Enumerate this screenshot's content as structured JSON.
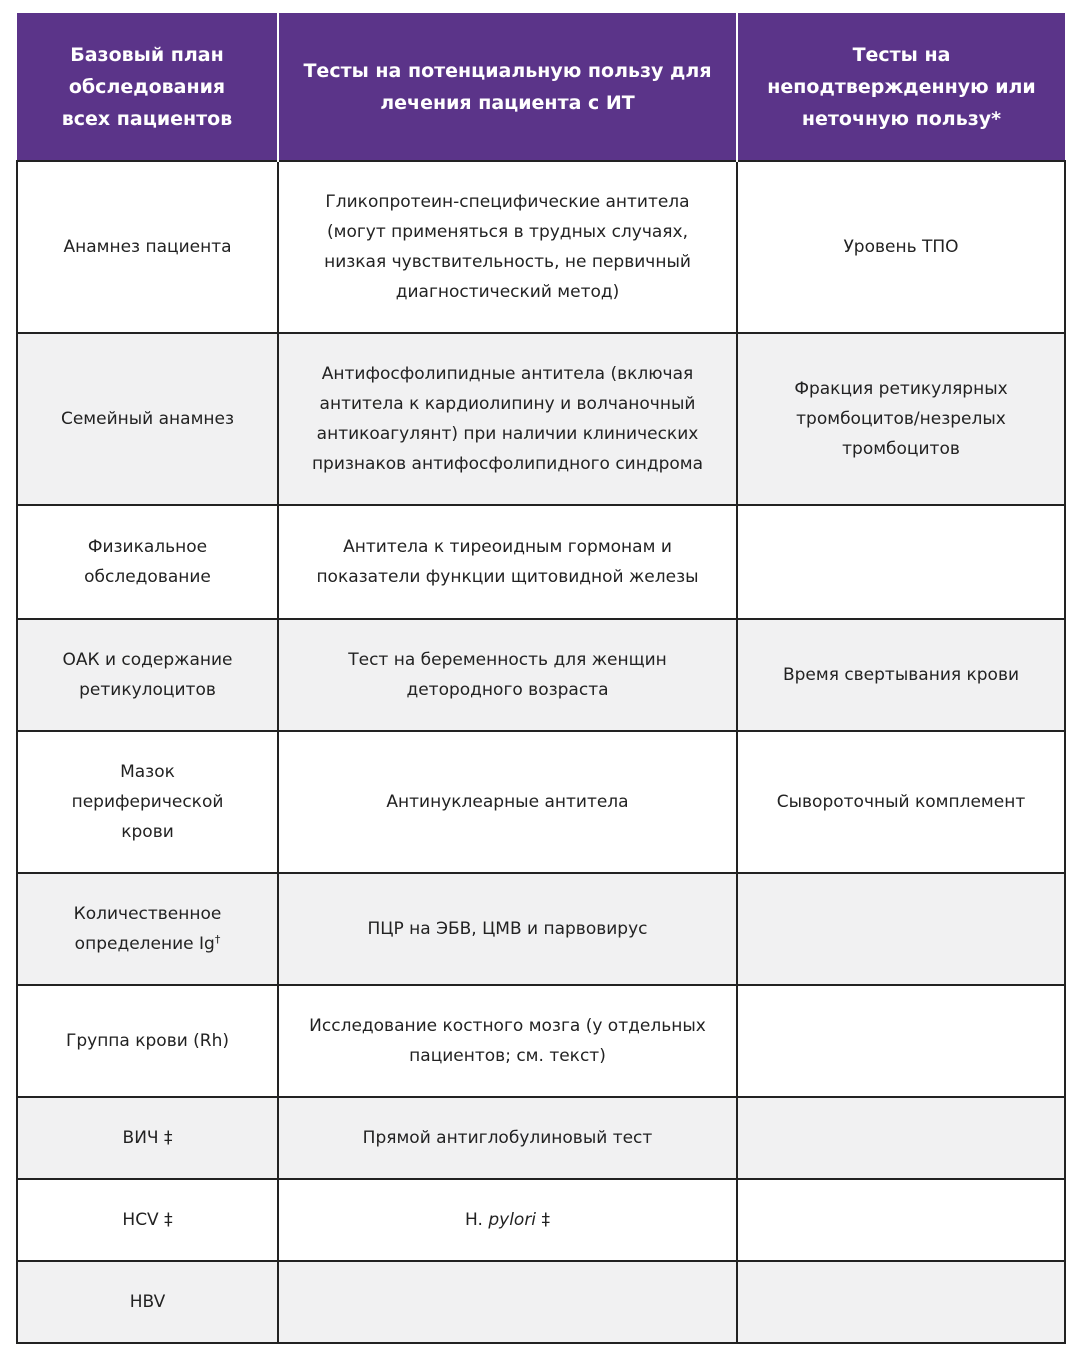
{
  "header_color": "#5b3489",
  "columns": [
    "Базовый план\nобследования\nвсех пациентов",
    "Тесты на потенциальную пользу для\nлечения пациента с ИТ",
    "Тесты на\nнеподтвержденную или\nнеточную пользу*"
  ],
  "rows": [
    {
      "h": 172,
      "cells": [
        "Анамнез пациента",
        "Гликопротеин-специфические антитела\n(могут применяться в трудных случаях,\nнизкая чувствительность, не первичный\nдиагностический метод)",
        "Уровень ТПО"
      ]
    },
    {
      "h": 172,
      "cells": [
        "Семейный анамнез",
        "Антифосфолипидные антитела (включая\nантитела к кардиолипину и волчаночный\nантикоагулянт) при наличии клинических\nпризнаков антифосфолипидного синдрома",
        "Фракция ретикулярных\nтромбоцитов/незрелых\nтромбоцитов"
      ]
    },
    {
      "h": 114,
      "cells": [
        "Физикальное\nобследование",
        "Антитела к тиреоидным гормонам и\nпоказатели функции щитовидной железы",
        ""
      ]
    },
    {
      "h": 112,
      "cells": [
        "ОАК и содержание\nретикулоцитов",
        "Тест на беременность для женщин\nдетородного возраста",
        "Время свертывания крови"
      ]
    },
    {
      "h": 142,
      "cells": [
        "Мазок\nпериферической\nкрови",
        "Антинуклеарные антитела",
        "Сывороточный комплемент"
      ]
    },
    {
      "h": 112,
      "cells": [
        [
          {
            "t": "Количественное\nопределение Ig"
          },
          {
            "t": "†",
            "sup": true
          }
        ],
        "ПЦР на ЭБВ, ЦМВ и парвовирус",
        ""
      ]
    },
    {
      "h": 112,
      "cells": [
        "Группа крови (Rh)",
        "Исследование костного мозга (у отдельных\nпациентов; см. текст)",
        ""
      ]
    },
    {
      "h": 82,
      "cells": [
        "ВИЧ ‡",
        "Прямой антиглобулиновый тест",
        ""
      ]
    },
    {
      "h": 82,
      "cells": [
        "HCV ‡",
        [
          {
            "t": "H. "
          },
          {
            "t": "pylori",
            "i": true
          },
          {
            "t": " ‡"
          }
        ],
        ""
      ]
    },
    {
      "h": 82,
      "cells": [
        "HBV",
        "",
        ""
      ]
    }
  ]
}
